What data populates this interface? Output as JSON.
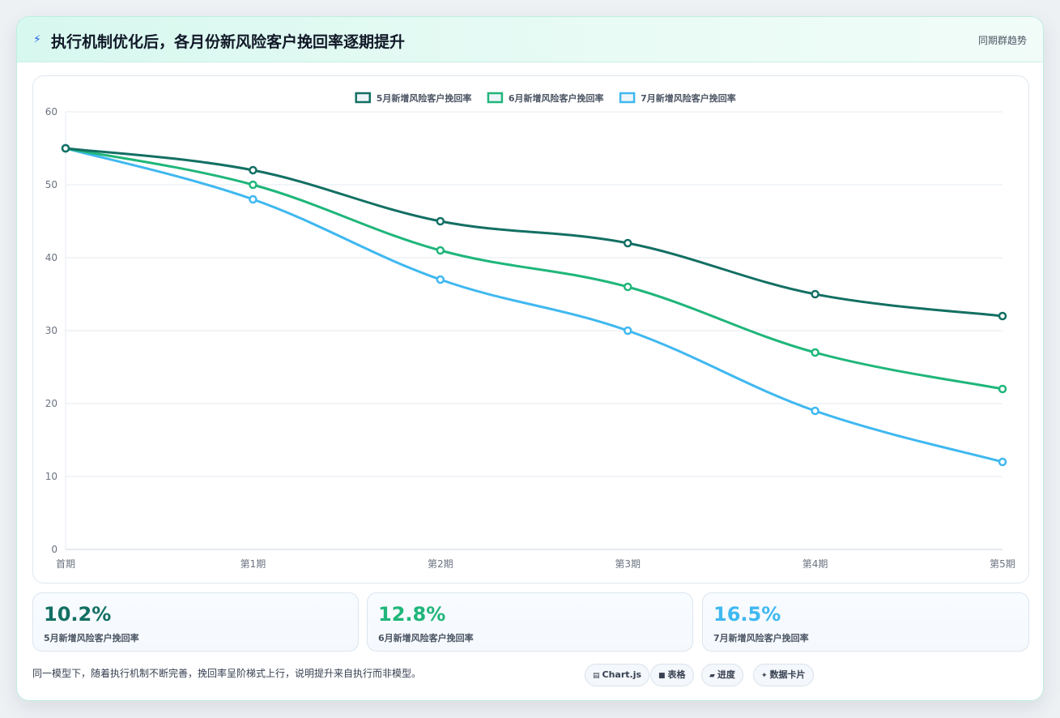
{
  "header": {
    "title": "执行机制优化后，各月份新风险客户挽回率逐期提升",
    "icon": "lightning-icon",
    "link_label": "同期群趋势"
  },
  "chart_data": {
    "type": "line",
    "title": "",
    "xlabel": "",
    "ylabel": "",
    "categories": [
      "首期",
      "第1期",
      "第2期",
      "第3期",
      "第4期",
      "第5期"
    ],
    "ylim": [
      0,
      60
    ],
    "yticks": [
      0,
      10,
      20,
      30,
      40,
      50,
      60
    ],
    "grid": true,
    "legend_position": "top",
    "series": [
      {
        "name": "5月新增风险客户挽回率",
        "color": "#136f63",
        "values": [
          55,
          52,
          45,
          42,
          35,
          32
        ]
      },
      {
        "name": "6月新增风险客户挽回率",
        "color": "#1fb67a",
        "values": [
          55,
          50,
          41,
          36,
          27,
          22
        ]
      },
      {
        "name": "7月新增风险客户挽回率",
        "color": "#3fb8f0",
        "values": [
          55,
          48,
          37,
          30,
          19,
          12
        ]
      }
    ]
  },
  "stats": [
    {
      "value": "10.2%",
      "label": "5月新增风险客户挽回率",
      "color": "#136f63"
    },
    {
      "value": "12.8%",
      "label": "6月新增风险客户挽回率",
      "color": "#1fb67a"
    },
    {
      "value": "16.5%",
      "label": "7月新增风险客户挽回率",
      "color": "#3fb8f0"
    }
  ],
  "footnote": "同一模型下，随着执行机制不断完善，挽回率呈阶梯式上行，说明提升来自执行而非模型。",
  "chips": [
    {
      "icon": "chart-icon",
      "glyph": "▤",
      "label": "Chart.js"
    },
    {
      "icon": "table-icon",
      "glyph": "■",
      "label": "表格"
    },
    {
      "icon": "progress-icon",
      "glyph": "▰",
      "label": "进度"
    },
    {
      "icon": "sparkle-icon",
      "glyph": "✦",
      "label": "数据卡片"
    }
  ]
}
